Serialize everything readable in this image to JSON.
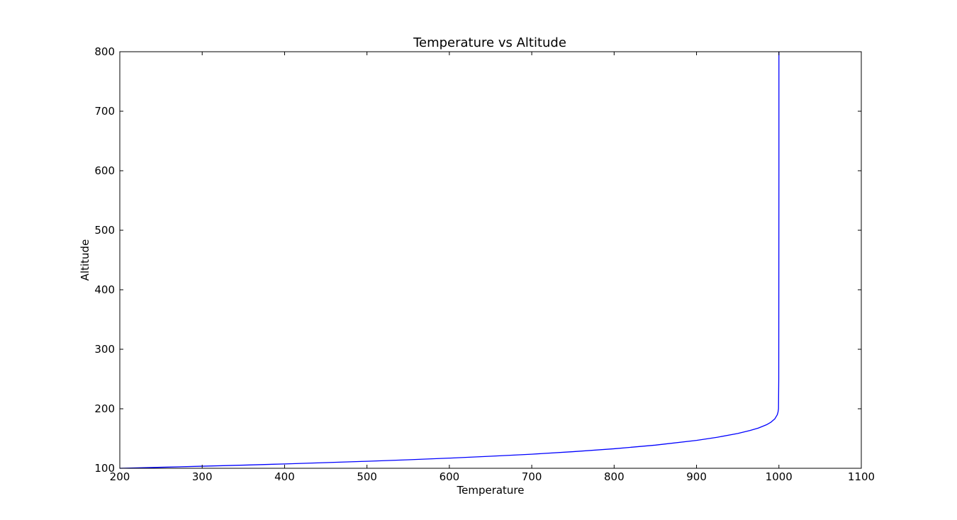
{
  "chart_data": {
    "type": "line",
    "title": "Temperature vs Altitude",
    "xlabel": "Temperature",
    "ylabel": "Altitude",
    "xlim": [
      200,
      1100
    ],
    "ylim": [
      100,
      800
    ],
    "xticks": [
      200,
      300,
      400,
      500,
      600,
      700,
      800,
      900,
      1000,
      1100
    ],
    "yticks": [
      100,
      200,
      300,
      400,
      500,
      600,
      700,
      800
    ],
    "grid": false,
    "series": [
      {
        "color": "#0000ff",
        "x": [
          200,
          250,
          300,
          350,
          400,
          450,
          500,
          550,
          600,
          650,
          700,
          750,
          800,
          850,
          900,
          925,
          950,
          965,
          975,
          985,
          990,
          995,
          998,
          999,
          999.5,
          999.8,
          999.9,
          1000,
          1000
        ],
        "y": [
          100,
          101.7,
          103.5,
          105.3,
          107.3,
          109.5,
          111.8,
          114.3,
          117.1,
          120.2,
          123.7,
          127.9,
          132.8,
          138.9,
          146.9,
          152.1,
          158.5,
          163.5,
          167.6,
          173.2,
          177.1,
          183.0,
          190.0,
          195.0,
          200.0,
          250.0,
          400.0,
          600.0,
          800.0
        ]
      }
    ]
  }
}
